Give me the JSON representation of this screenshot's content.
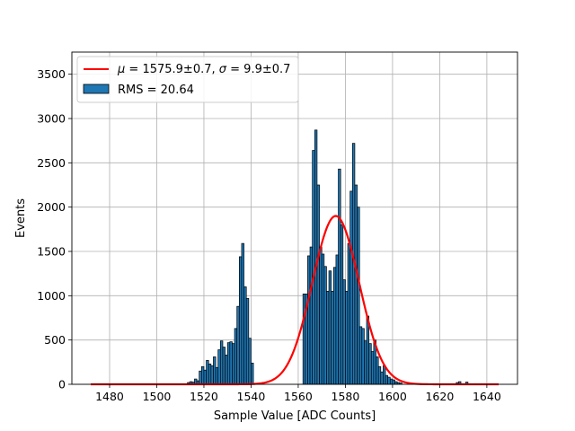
{
  "chart_data": {
    "type": "bar",
    "xlabel": "Sample Value [ADC Counts]",
    "ylabel": "Events",
    "xlim": [
      1464,
      1653
    ],
    "ylim": [
      0,
      3750
    ],
    "xticks": [
      1480,
      1500,
      1520,
      1540,
      1560,
      1580,
      1600,
      1620,
      1640
    ],
    "yticks": [
      0,
      500,
      1000,
      1500,
      2000,
      2500,
      3000,
      3500
    ],
    "grid": true,
    "legend_position": "top-left",
    "colors": {
      "histogram": "#1f77b4",
      "fit": "#ff0000",
      "edge": "#000000",
      "grid": "#b0b0b0"
    },
    "histogram": {
      "name": "RMS = 20.64",
      "bin_width": 1,
      "bins": [
        [
          1513,
          20
        ],
        [
          1514,
          30
        ],
        [
          1515,
          25
        ],
        [
          1516,
          60
        ],
        [
          1517,
          40
        ],
        [
          1518,
          150
        ],
        [
          1519,
          200
        ],
        [
          1520,
          160
        ],
        [
          1521,
          270
        ],
        [
          1522,
          230
        ],
        [
          1523,
          210
        ],
        [
          1524,
          310
        ],
        [
          1525,
          190
        ],
        [
          1526,
          390
        ],
        [
          1527,
          490
        ],
        [
          1528,
          420
        ],
        [
          1529,
          330
        ],
        [
          1530,
          470
        ],
        [
          1531,
          480
        ],
        [
          1532,
          460
        ],
        [
          1533,
          630
        ],
        [
          1534,
          880
        ],
        [
          1535,
          1440
        ],
        [
          1536,
          1590
        ],
        [
          1537,
          1100
        ],
        [
          1538,
          970
        ],
        [
          1539,
          520
        ],
        [
          1540,
          240
        ],
        [
          1562,
          1020
        ],
        [
          1563,
          1020
        ],
        [
          1564,
          1450
        ],
        [
          1565,
          1550
        ],
        [
          1566,
          2640
        ],
        [
          1567,
          2870
        ],
        [
          1568,
          2250
        ],
        [
          1569,
          1550
        ],
        [
          1570,
          1470
        ],
        [
          1571,
          1330
        ],
        [
          1572,
          1050
        ],
        [
          1573,
          1280
        ],
        [
          1574,
          1050
        ],
        [
          1575,
          1320
        ],
        [
          1576,
          1460
        ],
        [
          1577,
          2430
        ],
        [
          1578,
          1800
        ],
        [
          1579,
          1180
        ],
        [
          1580,
          1050
        ],
        [
          1581,
          1590
        ],
        [
          1582,
          2180
        ],
        [
          1583,
          2720
        ],
        [
          1584,
          2250
        ],
        [
          1585,
          2000
        ],
        [
          1586,
          650
        ],
        [
          1587,
          630
        ],
        [
          1588,
          490
        ],
        [
          1589,
          770
        ],
        [
          1590,
          460
        ],
        [
          1591,
          370
        ],
        [
          1592,
          500
        ],
        [
          1593,
          310
        ],
        [
          1594,
          200
        ],
        [
          1595,
          140
        ],
        [
          1596,
          210
        ],
        [
          1597,
          100
        ],
        [
          1598,
          80
        ],
        [
          1599,
          60
        ],
        [
          1600,
          50
        ],
        [
          1601,
          30
        ],
        [
          1602,
          20
        ],
        [
          1603,
          15
        ],
        [
          1627,
          20
        ],
        [
          1628,
          30
        ],
        [
          1631,
          25
        ]
      ]
    },
    "fit": {
      "label": "μ = 1575.9±0.7, σ = 9.9±0.7",
      "label_parts": {
        "mu_symbol": "μ",
        "mu_text": " = 1575.9±0.7, ",
        "sigma_symbol": "σ",
        "sigma_text": " = 9.9±0.7"
      },
      "mu": 1575.9,
      "sigma": 9.9,
      "amplitude": 1900,
      "x_range": [
        1472,
        1645
      ]
    }
  }
}
